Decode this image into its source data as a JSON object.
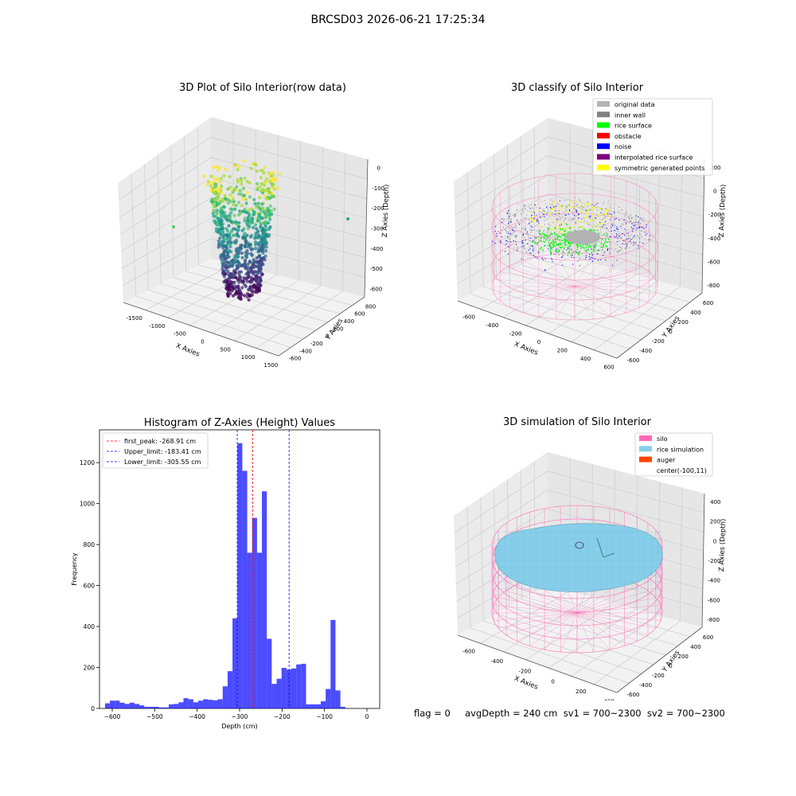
{
  "figure": {
    "suptitle": "BRCSD03 2026-06-21 17:25:34"
  },
  "panels": {
    "raw": {
      "title": "3D Plot of Silo Interior(row data)",
      "xlabel": "X Axies",
      "ylabel": "Y Axies",
      "zlabel": "Z Axies (Depth)",
      "xticks": [
        "-1500",
        "-1000",
        "-500",
        "0",
        "500",
        "1000",
        "1500"
      ],
      "yticks": [
        "-600",
        "-400",
        "-200",
        "0",
        "200",
        "400",
        "600",
        "800"
      ],
      "zticks": [
        "0",
        "-100",
        "-200",
        "-300",
        "-400",
        "-500",
        "-600"
      ],
      "colormap": "viridis"
    },
    "classify": {
      "title": "3D classify of Silo Interior",
      "xlabel": "X Axies",
      "ylabel": "Y Axies",
      "zlabel": "Z Axies (Depth)",
      "xticks": [
        "-600",
        "-400",
        "-200",
        "0",
        "200",
        "400",
        "600"
      ],
      "yticks": [
        "-600",
        "-400",
        "-200",
        "0",
        "200",
        "400",
        "600"
      ],
      "zticks": [
        "200",
        "0",
        "-200",
        "-400",
        "-600",
        "-800"
      ],
      "legend": [
        {
          "label": "original data",
          "color": "#b3b3b3"
        },
        {
          "label": "inner wall",
          "color": "#808080"
        },
        {
          "label": "rice surface",
          "color": "#00ff00"
        },
        {
          "label": "obstacle",
          "color": "#ff0000"
        },
        {
          "label": "noise",
          "color": "#0000ff"
        },
        {
          "label": "interpolated rice surface",
          "color": "#800080"
        },
        {
          "label": "symmetric generated points",
          "color": "#ffff00"
        }
      ],
      "cylinder_color": "#ff69b4"
    },
    "sim": {
      "title": "3D simulation of Silo Interior",
      "xlabel": "X Axies",
      "ylabel": "Y Axies",
      "zlabel": "Z Axies (Depth)",
      "xticks": [
        "-600",
        "-400",
        "-200",
        "0",
        "200",
        "400"
      ],
      "yticks": [
        "-600",
        "-400",
        "-200",
        "0",
        "200",
        "400",
        "600"
      ],
      "zticks": [
        "400",
        "200",
        "0",
        "-200",
        "-400",
        "-600",
        "-800"
      ],
      "legend": [
        {
          "label": "silo",
          "color": "#ff69b4"
        },
        {
          "label": "rice simulation",
          "color": "#87ceeb"
        },
        {
          "label": "auger",
          "color": "#ff4500"
        },
        {
          "label": "center(-100,11)",
          "color": ""
        }
      ],
      "footer": "flag = 0     avgDepth = 240 cm  sv1 = 700~2300  sv2 = 700~2300"
    }
  },
  "chart_data": [
    {
      "type": "bar",
      "title": "Histogram of Z-Axies (Height) Values",
      "xlabel": "Depth (cm)",
      "ylabel": "Frequency",
      "xlim": [
        -630,
        30
      ],
      "ylim": [
        0,
        1360
      ],
      "xticks": [
        -600,
        -500,
        -400,
        -300,
        -200,
        -100,
        0
      ],
      "yticks": [
        0,
        200,
        400,
        600,
        800,
        1000,
        1200
      ],
      "bar_color": "#0000ff",
      "bin_start": -617,
      "bin_width": 11.55,
      "values": [
        25,
        38,
        38,
        28,
        22,
        28,
        22,
        15,
        8,
        8,
        8,
        5,
        5,
        20,
        22,
        30,
        50,
        45,
        30,
        38,
        45,
        42,
        40,
        45,
        108,
        182,
        440,
        1295,
        1160,
        760,
        930,
        760,
        1060,
        340,
        120,
        145,
        198,
        190,
        195,
        215,
        218,
        20,
        20,
        20,
        35,
        95,
        432,
        88,
        8
      ],
      "vlines": [
        {
          "label": "first_peak: -268.91 cm",
          "x": -268.91,
          "color": "#ff0000"
        },
        {
          "label": "Upper_limit: -183.41 cm",
          "x": -183.41,
          "color": "#0000ff"
        },
        {
          "label": "Lower_limit: -305.55 cm",
          "x": -305.55,
          "color": "#0000ff"
        }
      ],
      "legend_position": "upper left"
    }
  ]
}
